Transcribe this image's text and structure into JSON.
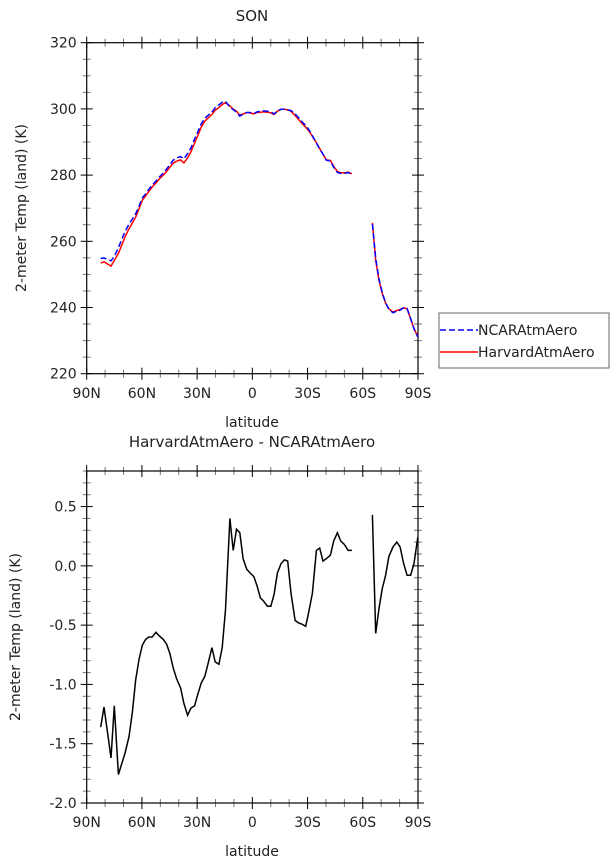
{
  "chart_data": [
    {
      "type": "line",
      "title": "SON",
      "xlabel": "latitude",
      "ylabel": "2-meter Temp (land) (K)",
      "xlim": [
        90,
        -90
      ],
      "ylim": [
        220,
        320
      ],
      "xticks": [
        90,
        60,
        30,
        0,
        -30,
        -60,
        -90
      ],
      "xtick_labels": [
        "90N",
        "60N",
        "30N",
        "0",
        "30S",
        "60S",
        "90S"
      ],
      "yticks": [
        220,
        240,
        260,
        280,
        300,
        320
      ],
      "ytick_labels": [
        "220",
        "240",
        "260",
        "280",
        "300",
        "320"
      ],
      "legend_position": "right",
      "x": [
        82.4,
        80.6,
        76.8,
        75.0,
        72.8,
        69.2,
        67.0,
        65.2,
        63.4,
        61.6,
        59.8,
        58.0,
        56.2,
        54.4,
        52.4,
        50.6,
        48.4,
        46.6,
        44.8,
        43.0,
        41.2,
        39.0,
        37.2,
        35.2,
        33.4,
        31.4,
        29.6,
        27.8,
        25.8,
        24.0,
        22.0,
        20.2,
        18.2,
        16.4,
        14.6,
        12.2,
        10.4,
        8.6,
        6.8,
        5.0,
        3.0,
        1.2,
        -0.8,
        -2.6,
        -4.4,
        -6.2,
        -8.2,
        -10.0,
        -11.8,
        -13.6,
        -15.6,
        -17.4,
        -19.2,
        -21.0,
        -23.2,
        -25.0,
        -26.8,
        -29.0,
        -30.8,
        -32.6,
        -34.8,
        -36.6,
        -38.4,
        -40.2,
        -42.4,
        -44.2,
        -46.2,
        -48.0,
        -50.0,
        -52.0,
        -54.1,
        -60.0,
        -65.2,
        -67.0,
        -68.8,
        -70.6,
        -72.4,
        -74.2,
        -76.4,
        -78.5,
        -80.3,
        -82.2,
        -84.1,
        -86.0,
        -87.8,
        -89.9
      ],
      "series": [
        {
          "name": "NCARAtmAero",
          "color": "#0000ff",
          "dash": "dashed",
          "values": [
            254.8,
            255.0,
            254.1,
            255.4,
            258.1,
            262.9,
            265.2,
            266.7,
            268.3,
            270.6,
            273.1,
            274.3,
            275.7,
            277.0,
            278.2,
            279.4,
            280.6,
            281.8,
            283.1,
            284.5,
            285.2,
            285.6,
            284.9,
            286.5,
            288.2,
            290.9,
            293.1,
            295.5,
            297.2,
            298.1,
            299.0,
            300.4,
            301.2,
            302.0,
            302.3,
            300.5,
            299.8,
            299.0,
            297.8,
            298.4,
            298.9,
            298.9,
            298.6,
            299.1,
            299.3,
            299.4,
            299.3,
            299.1,
            298.5,
            299.4,
            299.9,
            299.9,
            299.7,
            299.5,
            298.5,
            297.4,
            296.2,
            295.0,
            293.7,
            291.9,
            289.7,
            287.9,
            286.3,
            284.5,
            284.3,
            282.4,
            280.8,
            280.5,
            280.5,
            280.8,
            280.3,
            null,
            265.2,
            254.8,
            248.6,
            244.4,
            241.4,
            239.5,
            238.4,
            238.9,
            239.2,
            239.9,
            239.7,
            236.7,
            233.6,
            231.1
          ]
        },
        {
          "name": "HarvardAtmAero",
          "color": "#ff0000",
          "dash": "solid",
          "values": [
            253.4,
            253.8,
            252.5,
            254.2,
            256.3,
            261.3,
            263.8,
            265.5,
            267.3,
            269.8,
            272.4,
            273.7,
            275.1,
            276.4,
            277.6,
            278.8,
            280.0,
            281.1,
            282.4,
            283.6,
            284.2,
            284.6,
            283.7,
            285.2,
            287.0,
            289.7,
            292.0,
            294.5,
            296.3,
            297.3,
            298.3,
            299.6,
            300.4,
            301.3,
            301.9,
            300.9,
            299.9,
            299.3,
            298.1,
            298.5,
            298.9,
            298.8,
            298.5,
            298.9,
            299.0,
            299.1,
            299.0,
            298.8,
            298.3,
            299.3,
            299.9,
            299.9,
            299.7,
            299.3,
            298.0,
            296.9,
            295.7,
            294.5,
            293.3,
            291.7,
            289.8,
            288.0,
            286.3,
            284.6,
            284.4,
            282.6,
            281.1,
            280.7,
            280.7,
            280.9,
            280.4,
            null,
            265.6,
            254.2,
            248.2,
            244.2,
            241.3,
            239.6,
            238.6,
            239.1,
            239.4,
            239.9,
            239.6,
            236.6,
            233.6,
            231.3
          ]
        }
      ]
    },
    {
      "type": "line",
      "title": "HarvardAtmAero - NCARAtmAero",
      "xlabel": "latitude",
      "ylabel": "2-meter Temp (land) (K)",
      "xlim": [
        90,
        -90
      ],
      "ylim": [
        -2.0,
        0.8
      ],
      "xticks": [
        90,
        60,
        30,
        0,
        -30,
        -60,
        -90
      ],
      "xtick_labels": [
        "90N",
        "60N",
        "30N",
        "0",
        "30S",
        "60S",
        "90S"
      ],
      "yticks": [
        -2.0,
        -1.5,
        -1.0,
        -0.5,
        0.0,
        0.5
      ],
      "ytick_labels": [
        "-2.0",
        "-1.5",
        "-1.0",
        "-0.5",
        "0.0",
        "0.5"
      ],
      "x": [
        82.4,
        80.6,
        76.8,
        75.0,
        72.8,
        69.2,
        67.0,
        65.2,
        63.4,
        61.6,
        59.8,
        58.0,
        56.2,
        54.4,
        52.4,
        50.6,
        48.4,
        46.6,
        44.8,
        43.0,
        41.2,
        39.0,
        37.2,
        35.2,
        33.4,
        31.4,
        29.6,
        27.8,
        25.8,
        24.0,
        22.0,
        20.2,
        18.2,
        16.4,
        14.6,
        12.2,
        10.4,
        8.6,
        6.8,
        5.0,
        3.0,
        1.2,
        -0.8,
        -2.6,
        -4.4,
        -6.2,
        -8.2,
        -10.0,
        -11.8,
        -13.6,
        -15.6,
        -17.4,
        -19.2,
        -21.0,
        -23.2,
        -25.0,
        -26.8,
        -29.0,
        -30.8,
        -32.6,
        -34.8,
        -36.6,
        -38.4,
        -40.2,
        -42.4,
        -44.2,
        -46.2,
        -48.0,
        -50.0,
        -52.0,
        -54.1,
        -60.0,
        -65.2,
        -67.0,
        -68.8,
        -70.6,
        -72.4,
        -74.2,
        -76.4,
        -78.5,
        -80.3,
        -82.2,
        -84.1,
        -86.0,
        -87.8,
        -89.9
      ],
      "series": [
        {
          "color": "#000000",
          "values": [
            -1.36,
            -1.19,
            -1.62,
            -1.18,
            -1.76,
            -1.58,
            -1.44,
            -1.24,
            -0.96,
            -0.79,
            -0.67,
            -0.62,
            -0.6,
            -0.6,
            -0.56,
            -0.59,
            -0.62,
            -0.66,
            -0.74,
            -0.86,
            -0.95,
            -1.03,
            -1.16,
            -1.26,
            -1.2,
            -1.18,
            -1.08,
            -0.99,
            -0.93,
            -0.82,
            -0.69,
            -0.81,
            -0.83,
            -0.69,
            -0.37,
            0.4,
            0.13,
            0.31,
            0.28,
            0.06,
            -0.03,
            -0.06,
            -0.09,
            -0.17,
            -0.27,
            -0.3,
            -0.34,
            -0.34,
            -0.24,
            -0.06,
            0.02,
            0.05,
            0.04,
            -0.23,
            -0.46,
            -0.48,
            -0.49,
            -0.51,
            -0.38,
            -0.23,
            0.13,
            0.15,
            0.04,
            0.06,
            0.09,
            0.21,
            0.28,
            0.21,
            0.18,
            0.13,
            0.13,
            null,
            0.43,
            -0.57,
            -0.36,
            -0.19,
            -0.08,
            0.08,
            0.16,
            0.2,
            0.16,
            0.02,
            -0.08,
            -0.08,
            0.02,
            0.24
          ]
        }
      ]
    }
  ]
}
